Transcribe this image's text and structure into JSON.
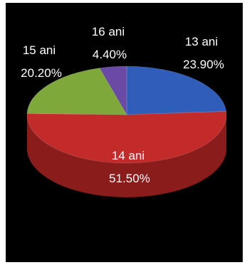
{
  "chart_data": {
    "type": "pie",
    "style": "3d",
    "series": [
      {
        "slices": [
          {
            "label": "13 ani",
            "value": 23.9,
            "value_text": "23.90%",
            "color": "#2f5db9",
            "side_color": "#1d3b78"
          },
          {
            "label": "14 ani",
            "value": 51.5,
            "value_text": "51.50%",
            "color": "#c32b2b",
            "side_color": "#8a1c1c"
          },
          {
            "label": "15 ani",
            "value": 20.2,
            "value_text": "20.20%",
            "color": "#7fa83a",
            "side_color": "#587826"
          },
          {
            "label": "16 ani",
            "value": 4.4,
            "value_text": "4.40%",
            "color": "#6b4aa6",
            "side_color": "#4b3275"
          }
        ]
      }
    ],
    "background": "#000000",
    "label_color": "#ffffff",
    "legend": "none"
  }
}
